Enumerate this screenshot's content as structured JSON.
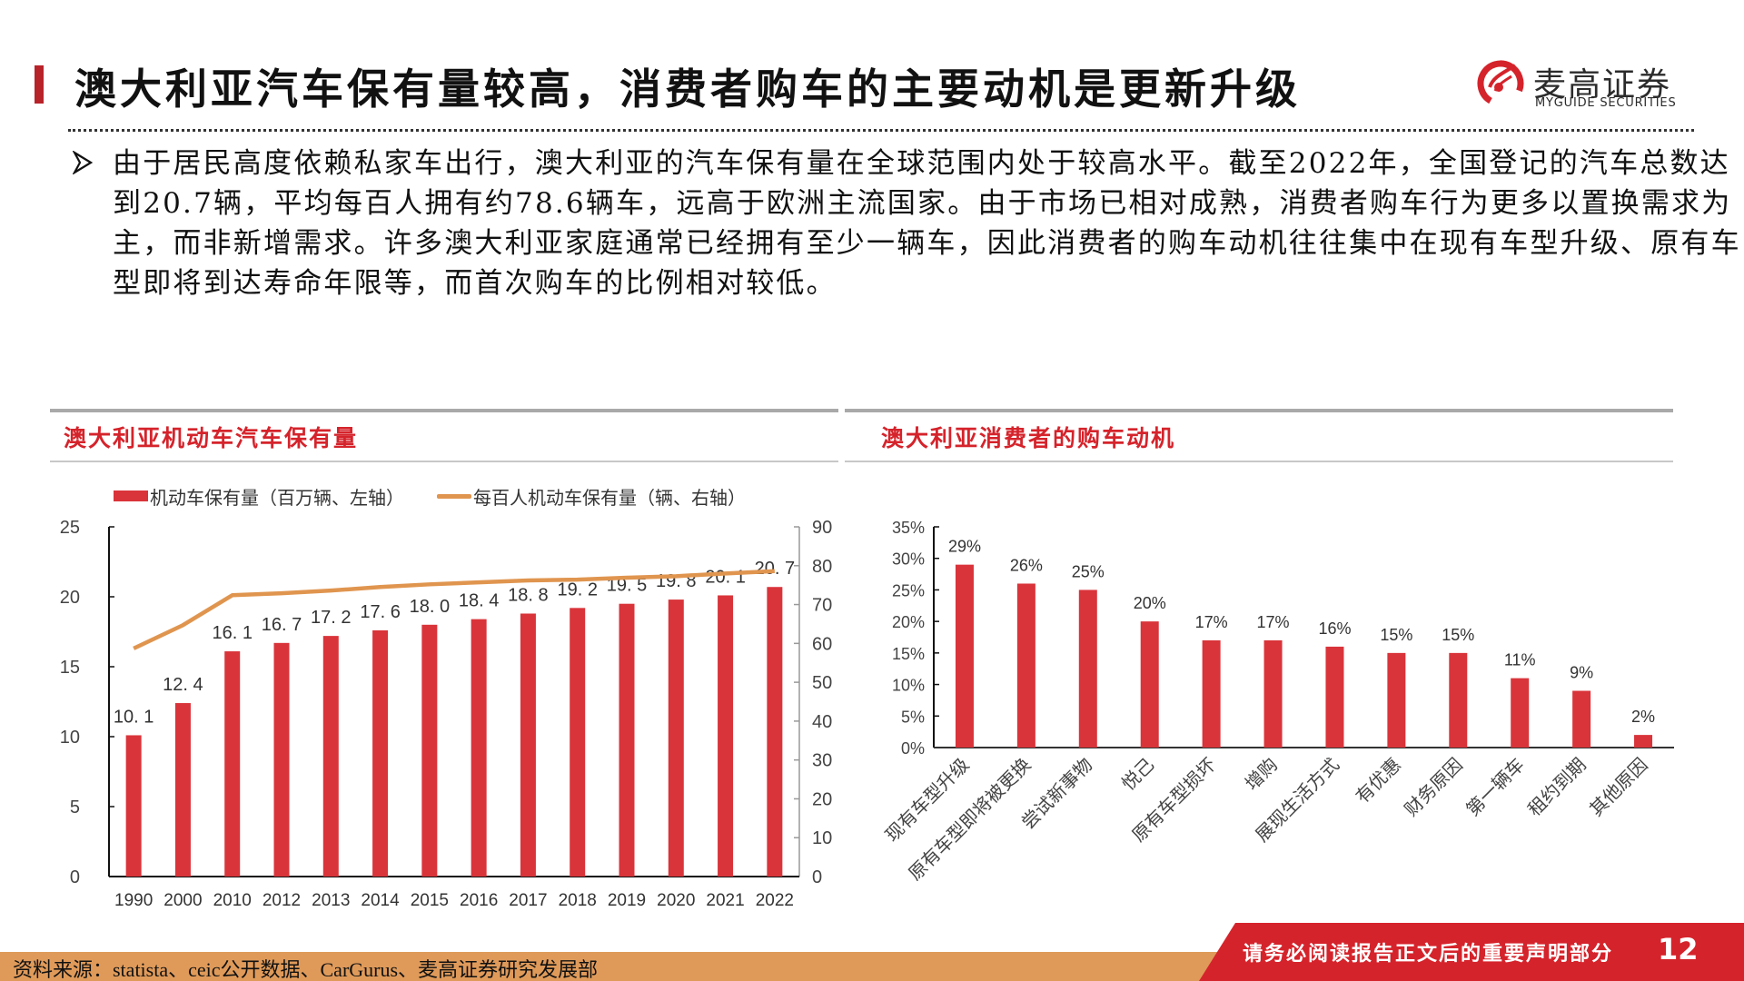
{
  "header": {
    "title": "澳大利亚汽车保有量较高，消费者购车的主要动机是更新升级",
    "logo_cn": "麦高证券",
    "logo_en": "MYGUIDE SECURITIES",
    "logo_icon": "myguide-logo-icon",
    "accent_color": "#b8232a"
  },
  "body": {
    "bullet_icon": "arrow-bullet-icon",
    "paragraph": "由于居民高度依赖私家车出行，澳大利亚的汽车保有量在全球范围内处于较高水平。截至2022年，全国登记的汽车总数达到20.7辆，平均每百人拥有约78.6辆车，远高于欧洲主流国家。由于市场已相对成熟，消费者购车行为更多以置换需求为主，而非新增需求。许多澳大利亚家庭通常已经拥有至少一辆车，因此消费者的购车动机往往集中在现有车型升级、原有车型即将到达寿命年限等，而首次购车的比例相对较低。"
  },
  "panels": {
    "left_title": "澳大利亚机动车汽车保有量",
    "right_title": "澳大利亚消费者的购车动机"
  },
  "chart_data": [
    {
      "type": "bar+line",
      "title": "澳大利亚机动车汽车保有量",
      "categories": [
        "1990",
        "2000",
        "2010",
        "2012",
        "2013",
        "2014",
        "2015",
        "2016",
        "2017",
        "2018",
        "2019",
        "2020",
        "2021",
        "2022"
      ],
      "series": [
        {
          "name": "机动车保有量（百万辆、左轴）",
          "type": "bar",
          "axis": "left",
          "color": "#d9343a",
          "values": [
            10.1,
            12.4,
            16.1,
            16.7,
            17.2,
            17.6,
            18.0,
            18.4,
            18.8,
            19.2,
            19.5,
            19.8,
            20.1,
            20.7
          ],
          "labels": [
            "10. 1",
            "12. 4",
            "16. 1",
            "16. 7",
            "17. 2",
            "17. 6",
            "18. 0",
            "18. 4",
            "18. 8",
            "19. 2",
            "19. 5",
            "19. 8",
            "20. 1",
            "20. 7"
          ]
        },
        {
          "name": "每百人机动车保有量（辆、右轴）",
          "type": "line",
          "axis": "right",
          "color": "#e0954f",
          "values": [
            58.7,
            64.7,
            72.4,
            72.9,
            73.6,
            74.5,
            75.2,
            75.7,
            76.2,
            76.4,
            76.9,
            77.3,
            78.0,
            78.6
          ]
        }
      ],
      "left_axis": {
        "ylim": [
          0,
          25
        ],
        "ticks": [
          "0",
          "5",
          "10",
          "15",
          "20",
          "25"
        ]
      },
      "right_axis": {
        "ylim": [
          0,
          90
        ],
        "ticks": [
          "0",
          "10",
          "20",
          "30",
          "40",
          "50",
          "60",
          "70",
          "80",
          "90"
        ]
      },
      "legend_position": "top",
      "grid": false
    },
    {
      "type": "bar",
      "title": "澳大利亚消费者的购车动机",
      "categories": [
        "现有车型升级",
        "原有车型即将被更换",
        "尝试新事物",
        "悦己",
        "原有车型损坏",
        "增购",
        "展现生活方式",
        "有优惠",
        "财务原因",
        "第一辆车",
        "租约到期",
        "其他原因"
      ],
      "values": [
        29,
        26,
        25,
        20,
        17,
        17,
        16,
        15,
        15,
        11,
        9,
        2
      ],
      "labels": [
        "29%",
        "26%",
        "25%",
        "20%",
        "17%",
        "17%",
        "16%",
        "15%",
        "15%",
        "11%",
        "9%",
        "2%"
      ],
      "color": "#d9343a",
      "ylim": [
        0,
        35
      ],
      "ticks": [
        "0%",
        "5%",
        "10%",
        "15%",
        "20%",
        "25%",
        "30%",
        "35%"
      ],
      "xlabel_rotation": -45,
      "grid": false
    }
  ],
  "footer": {
    "source": "资料来源：statista、ceic公开数据、CarGurus、麦高证券研究发展部",
    "notice": "请务必阅读报告正文后的重要声明部分",
    "page_number": "12",
    "band_color": "#df9a5a",
    "red_color": "#d5232b"
  }
}
